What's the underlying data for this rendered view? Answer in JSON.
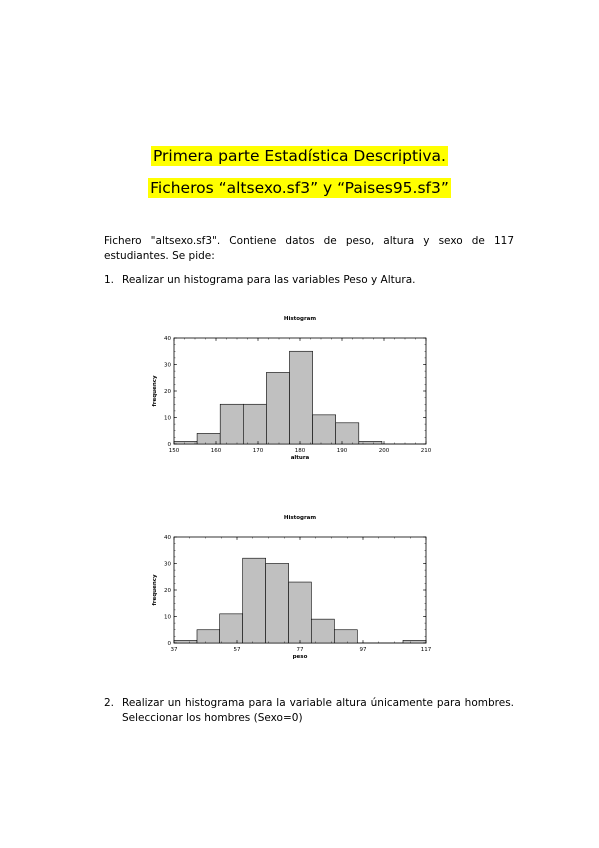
{
  "doc": {
    "title_line1": "Primera parte Estadística Descriptiva.",
    "title_line2": "Ficheros “altsexo.sf3” y “Paises95.sf3”",
    "intro": "Fichero \"altsexo.sf3\". Contiene datos de peso, altura y sexo de 117 estudiantes. Se pide:",
    "item1_num": "1.",
    "item1_text": "Realizar un histograma para las variables Peso y Altura.",
    "item2_num": "2.",
    "item2_text": "Realizar un histograma para la variable altura únicamente para hombres. Seleccionar los hombres (Sexo=0)",
    "highlight_color": "#ffff00"
  },
  "chart_data": [
    {
      "type": "bar",
      "title": "Histogram",
      "xlabel": "altura",
      "ylabel": "frequency",
      "xlim": [
        150,
        210
      ],
      "ylim": [
        0,
        40
      ],
      "xticks": [
        150,
        160,
        170,
        180,
        190,
        200,
        210
      ],
      "yticks": [
        0,
        10,
        20,
        30,
        40
      ],
      "bins": [
        {
          "from": 150,
          "to": 155.5,
          "value": 1
        },
        {
          "from": 155.5,
          "to": 161,
          "value": 4
        },
        {
          "from": 161,
          "to": 166.5,
          "value": 15
        },
        {
          "from": 166.5,
          "to": 172,
          "value": 15
        },
        {
          "from": 172,
          "to": 177.5,
          "value": 27
        },
        {
          "from": 177.5,
          "to": 183,
          "value": 35
        },
        {
          "from": 183,
          "to": 188.5,
          "value": 11
        },
        {
          "from": 188.5,
          "to": 194,
          "value": 8
        },
        {
          "from": 194,
          "to": 199.5,
          "value": 1
        },
        {
          "from": 199.5,
          "to": 205,
          "value": 0
        },
        {
          "from": 205,
          "to": 210,
          "value": 0
        }
      ],
      "bar_color": "#c0c0c0"
    },
    {
      "type": "bar",
      "title": "Histogram",
      "xlabel": "peso",
      "ylabel": "frequency",
      "xlim": [
        37,
        117
      ],
      "ylim": [
        0,
        40
      ],
      "xticks": [
        37,
        57,
        77,
        97,
        117
      ],
      "yticks": [
        0,
        10,
        20,
        30,
        40
      ],
      "bins": [
        {
          "from": 37,
          "to": 44.3,
          "value": 1
        },
        {
          "from": 44.3,
          "to": 51.5,
          "value": 5
        },
        {
          "from": 51.5,
          "to": 58.8,
          "value": 11
        },
        {
          "from": 58.8,
          "to": 66.1,
          "value": 32
        },
        {
          "from": 66.1,
          "to": 73.4,
          "value": 30
        },
        {
          "from": 73.4,
          "to": 80.6,
          "value": 23
        },
        {
          "from": 80.6,
          "to": 87.9,
          "value": 9
        },
        {
          "from": 87.9,
          "to": 95.2,
          "value": 5
        },
        {
          "from": 95.2,
          "to": 102.5,
          "value": 0
        },
        {
          "from": 102.5,
          "to": 109.7,
          "value": 0
        },
        {
          "from": 109.7,
          "to": 117,
          "value": 1
        }
      ],
      "bar_color": "#c0c0c0"
    }
  ]
}
